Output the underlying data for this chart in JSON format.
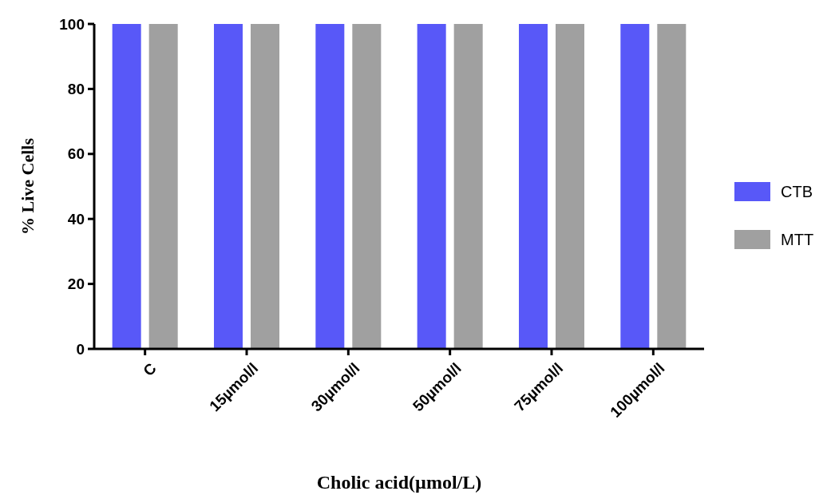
{
  "chart_data": {
    "type": "bar",
    "xlabel": "Cholic acid(µmol/L)",
    "ylabel": "% Live Cells",
    "categories": [
      "C",
      "15µmol/l",
      "30µmol/l",
      "50µmol/l",
      "75µmol/l",
      "100µmol/l"
    ],
    "series": [
      {
        "name": "CTB",
        "color": "#5858f8",
        "values": [
          100,
          100,
          100,
          100,
          100,
          100
        ]
      },
      {
        "name": "MTT",
        "color": "#a0a0a0",
        "values": [
          100,
          100,
          100,
          100,
          100,
          100
        ]
      }
    ],
    "ylim": [
      0,
      100
    ],
    "yticks": [
      0,
      20,
      40,
      60,
      80,
      100
    ],
    "grid": false,
    "legend": "right"
  }
}
